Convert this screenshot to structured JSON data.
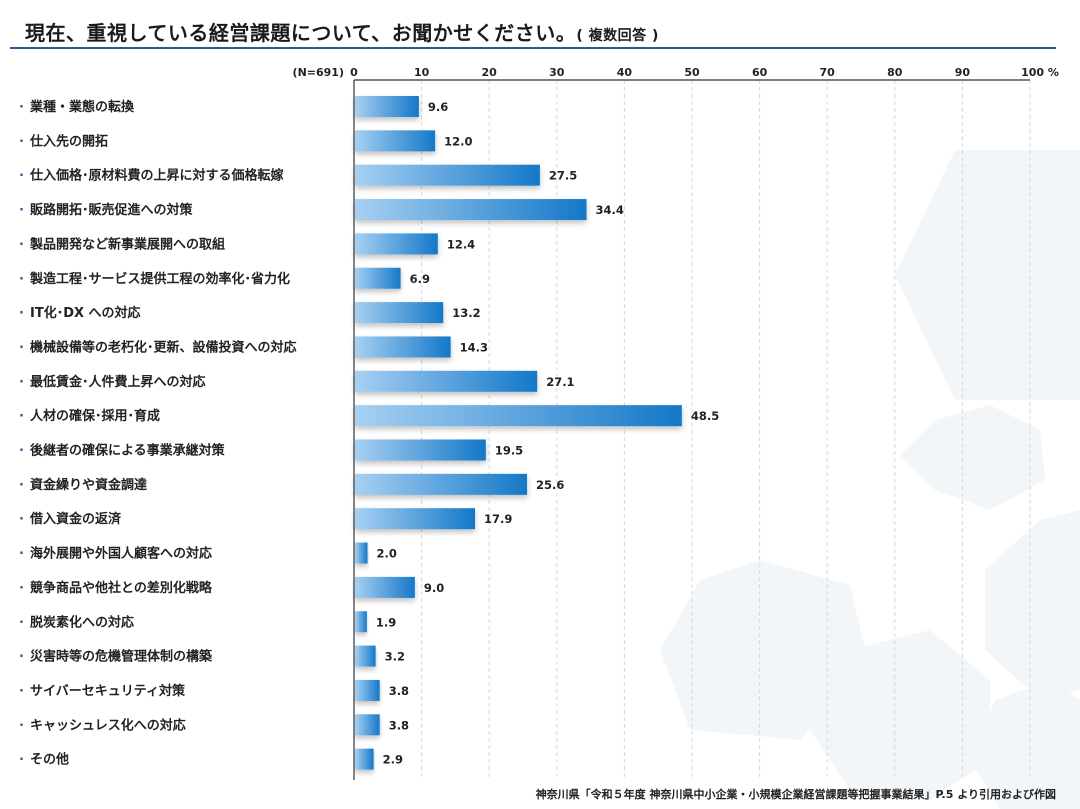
{
  "title": {
    "main": "現在、重視している経営課題について、お聞かせください。",
    "sub": "( 複数回答 )"
  },
  "source": "神奈川県「令和５年度 神奈川県中小企業・小規模企業経営課題等把握事業結果」P.5 より引用および作図",
  "colors": {
    "bar_light": "#a7d0f2",
    "bar_dark": "#1478c8",
    "accent": "#1f5fa0"
  },
  "chart_data": {
    "type": "bar",
    "orientation": "horizontal",
    "n_label": "(N=691)",
    "unit": "%",
    "x_ticks": [
      0,
      10,
      20,
      30,
      40,
      50,
      60,
      70,
      80,
      90,
      100
    ],
    "xlim": [
      0,
      100
    ],
    "grid": "dashed vertical",
    "categories": [
      "業種・業態の転換",
      "仕入先の開拓",
      "仕入価格･原材料費の上昇に対する価格転嫁",
      "販路開拓･販売促進への対策",
      "製品開発など新事業展開への取組",
      "製造工程･サービス提供工程の効率化･省力化",
      "IT化･DX への対応",
      "機械設備等の老朽化･更新、設備投資への対応",
      "最低賃金･人件費上昇への対応",
      "人材の確保･採用･育成",
      "後継者の確保による事業承継対策",
      "資金繰りや資金調達",
      "借入資金の返済",
      "海外展開や外国人顧客への対応",
      "競争商品や他社との差別化戦略",
      "脱炭素化への対応",
      "災害時等の危機管理体制の構築",
      "サイバーセキュリティ対策",
      "キャッシュレス化への対応",
      "その他"
    ],
    "values": [
      9.6,
      12.0,
      27.5,
      34.4,
      12.4,
      6.9,
      13.2,
      14.3,
      27.1,
      48.5,
      19.5,
      25.6,
      17.9,
      2.0,
      9.0,
      1.9,
      3.2,
      3.8,
      3.8,
      2.9
    ],
    "value_labels": [
      "9.6",
      "12.0",
      "27.5",
      "34.4",
      "12.4",
      "6.9",
      "13.2",
      "14.3",
      "27.1",
      "48.5",
      "19.5",
      "25.6",
      "17.9",
      "2.0",
      "9.0",
      "1.9",
      "3.2",
      "3.8",
      "3.8",
      "2.9"
    ]
  }
}
